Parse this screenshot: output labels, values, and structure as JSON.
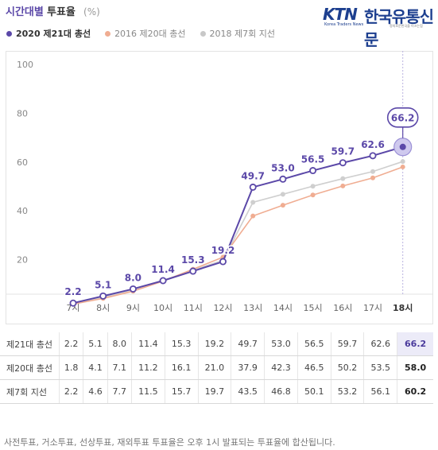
{
  "header": {
    "title_main": "시간대별",
    "title_sub": "투표율",
    "unit": "(%)"
  },
  "logo": {
    "brand": "KTN",
    "brand_sub": "Korea Traders News",
    "name": "한국유통신문",
    "tagline": "정의로운한국을 이끄는힘"
  },
  "legend": [
    {
      "label": "2020 제21대 총선",
      "color": "#5b48a8"
    },
    {
      "label": "2016 제20대 총선",
      "color": "#f0ad92"
    },
    {
      "label": "2018 제7회 지선",
      "color": "#c8c8c8"
    }
  ],
  "chart_data": {
    "type": "line",
    "categories": [
      "7시",
      "8시",
      "9시",
      "10시",
      "11시",
      "12시",
      "13시",
      "14시",
      "15시",
      "16시",
      "17시",
      "18시"
    ],
    "series": [
      {
        "name": "2020 제21대 총선",
        "color": "#5b48a8",
        "values": [
          2.2,
          5.1,
          8.0,
          11.4,
          15.3,
          19.2,
          49.7,
          53.0,
          56.5,
          59.7,
          62.6,
          66.2
        ]
      },
      {
        "name": "2016 제20대 총선",
        "color": "#f0ad92",
        "values": [
          1.8,
          4.1,
          7.1,
          11.2,
          16.1,
          21.0,
          37.9,
          42.3,
          46.5,
          50.2,
          53.5,
          58.0
        ]
      },
      {
        "name": "2018 제7회 지선",
        "color": "#cfcfcf",
        "values": [
          2.2,
          4.6,
          7.7,
          11.5,
          15.7,
          19.7,
          43.5,
          46.8,
          50.1,
          53.2,
          56.1,
          60.2
        ]
      }
    ],
    "yticks": [
      20,
      40,
      60,
      80,
      100
    ],
    "ylim": [
      0,
      100
    ],
    "highlight_category": "18시",
    "highlight_value": "66.2"
  },
  "table": {
    "rows": [
      {
        "label": "제21대 총선",
        "values": [
          "2.2",
          "5.1",
          "8.0",
          "11.4",
          "15.3",
          "19.2",
          "49.7",
          "53.0",
          "56.5",
          "59.7",
          "62.6",
          "66.2"
        ]
      },
      {
        "label": "제20대 총선",
        "values": [
          "1.8",
          "4.1",
          "7.1",
          "11.2",
          "16.1",
          "21.0",
          "37.9",
          "42.3",
          "46.5",
          "50.2",
          "53.5",
          "58.0"
        ]
      },
      {
        "label": "제7회 지선",
        "values": [
          "2.2",
          "4.6",
          "7.7",
          "11.5",
          "15.7",
          "19.7",
          "43.5",
          "46.8",
          "50.1",
          "53.2",
          "56.1",
          "60.2"
        ]
      }
    ]
  },
  "footnote": "사전투표, 거소투표, 선상투표, 재외투표 투표율은 오후 1시 발표되는 투표율에 합산됩니다."
}
